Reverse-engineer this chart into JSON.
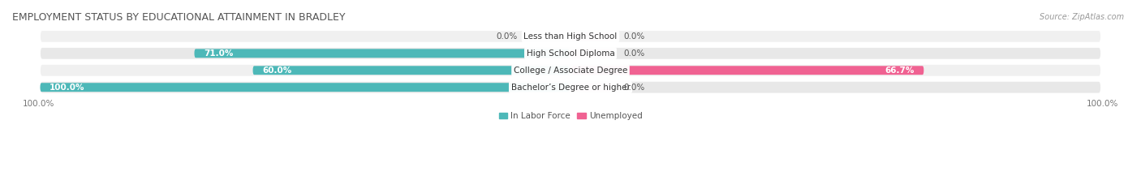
{
  "title": "EMPLOYMENT STATUS BY EDUCATIONAL ATTAINMENT IN BRADLEY",
  "source": "Source: ZipAtlas.com",
  "categories": [
    "Less than High School",
    "High School Diploma",
    "College / Associate Degree",
    "Bachelor’s Degree or higher"
  ],
  "labor_force_values": [
    0.0,
    71.0,
    60.0,
    100.0
  ],
  "unemployed_values": [
    0.0,
    0.0,
    66.7,
    0.0
  ],
  "labor_force_color": "#4db8b8",
  "unemployed_color": "#f06292",
  "unemployed_color_small": "#f8bbd0",
  "row_bg_colors": [
    "#f0f0f0",
    "#e8e8e8",
    "#f0f0f0",
    "#e8e8e8"
  ],
  "legend_labels": [
    "In Labor Force",
    "Unemployed"
  ],
  "title_fontsize": 9,
  "source_fontsize": 7,
  "label_fontsize": 7.5,
  "category_fontsize": 7.5,
  "tick_fontsize": 7.5,
  "max_val": 100.0
}
